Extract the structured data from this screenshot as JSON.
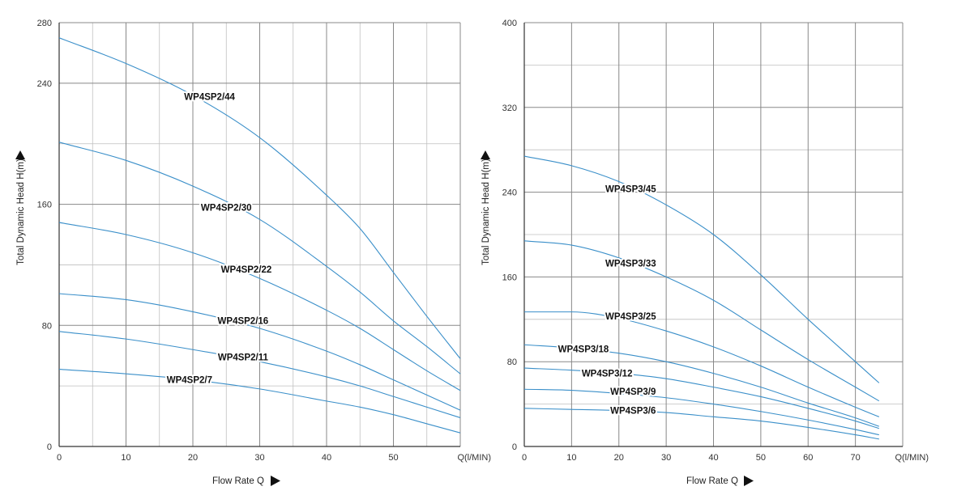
{
  "chart_data": [
    {
      "type": "line",
      "title": "",
      "xlabel": "Flow Rate Q",
      "ylabel": "Total Dynamic Head H(m)",
      "x_unit_label": "Q(l/MIN)",
      "xlim": [
        0,
        60
      ],
      "ylim": [
        0,
        280
      ],
      "x_ticks": [
        0,
        10,
        20,
        30,
        40,
        50
      ],
      "x_tick_labels": [
        "0",
        "10",
        "20",
        "30",
        "40",
        "50"
      ],
      "y_ticks": [
        0,
        80,
        160,
        240,
        280
      ],
      "y_tick_labels": [
        "0",
        "80",
        "160",
        "240",
        "280"
      ],
      "grid": true,
      "series": [
        {
          "name": "WP4SP2/44",
          "label_at": [
            22.5,
            231
          ],
          "x": [
            0,
            10,
            20,
            30,
            40,
            45,
            50,
            55,
            60
          ],
          "values": [
            270,
            253,
            232,
            204,
            166,
            144,
            115,
            86,
            58
          ]
        },
        {
          "name": "WP4SP2/30",
          "label_at": [
            25,
            158
          ],
          "x": [
            0,
            10,
            20,
            30,
            40,
            45,
            50,
            55,
            60
          ],
          "values": [
            201,
            189,
            172,
            150,
            119,
            102,
            83,
            66,
            48
          ]
        },
        {
          "name": "WP4SP2/22",
          "label_at": [
            28,
            117
          ],
          "x": [
            0,
            10,
            20,
            30,
            40,
            45,
            50,
            55,
            60
          ],
          "values": [
            148,
            140,
            128,
            111,
            90,
            78,
            64,
            50,
            37
          ]
        },
        {
          "name": "WP4SP2/16",
          "label_at": [
            27.5,
            83
          ],
          "x": [
            0,
            10,
            20,
            30,
            40,
            45,
            50,
            55,
            60
          ],
          "values": [
            101,
            97,
            89,
            78,
            63,
            54,
            44,
            34,
            24
          ]
        },
        {
          "name": "WP4SP2/11",
          "label_at": [
            27.5,
            59
          ],
          "x": [
            0,
            10,
            20,
            30,
            40,
            45,
            50,
            55,
            60
          ],
          "values": [
            76,
            71,
            64,
            56,
            46,
            40,
            33,
            26,
            19
          ]
        },
        {
          "name": "WP4SP2/7",
          "label_at": [
            19.5,
            44
          ],
          "x": [
            0,
            10,
            20,
            30,
            40,
            45,
            50,
            55,
            60
          ],
          "values": [
            51,
            48,
            44,
            38,
            30,
            26,
            21,
            15,
            9
          ]
        }
      ]
    },
    {
      "type": "line",
      "title": "",
      "xlabel": "Flow Rate Q",
      "ylabel": "Total Dynamic Head H(m)",
      "x_unit_label": "Q(l/MIN)",
      "xlim": [
        0,
        80
      ],
      "ylim": [
        0,
        400
      ],
      "x_ticks": [
        0,
        10,
        20,
        30,
        40,
        50,
        60,
        70
      ],
      "x_tick_labels": [
        "0",
        "10",
        "20",
        "30",
        "40",
        "50",
        "60",
        "70"
      ],
      "y_ticks": [
        0,
        80,
        160,
        240,
        320,
        400
      ],
      "y_tick_labels": [
        "0",
        "80",
        "160",
        "240",
        "320",
        "400"
      ],
      "grid": true,
      "series": [
        {
          "name": "WP4SP3/45",
          "label_at": [
            22.5,
            243
          ],
          "x": [
            0,
            10,
            20,
            30,
            40,
            50,
            60,
            70,
            75
          ],
          "values": [
            274,
            265,
            250,
            228,
            200,
            162,
            120,
            80,
            60
          ]
        },
        {
          "name": "WP4SP3/33",
          "label_at": [
            22.5,
            173
          ],
          "x": [
            0,
            10,
            20,
            30,
            40,
            50,
            60,
            70,
            75
          ],
          "values": [
            194,
            190,
            178,
            160,
            138,
            110,
            82,
            56,
            43
          ]
        },
        {
          "name": "WP4SP3/25",
          "label_at": [
            22.5,
            123
          ],
          "x": [
            0,
            10,
            20,
            30,
            40,
            50,
            60,
            70,
            75
          ],
          "values": [
            127,
            127,
            121,
            109,
            94,
            76,
            56,
            37,
            28
          ]
        },
        {
          "name": "WP4SP3/18",
          "label_at": [
            12.5,
            92
          ],
          "x": [
            0,
            10,
            20,
            30,
            40,
            50,
            60,
            70,
            75
          ],
          "values": [
            96,
            93,
            88,
            80,
            69,
            56,
            41,
            27,
            19
          ]
        },
        {
          "name": "WP4SP3/12",
          "label_at": [
            17.5,
            69
          ],
          "x": [
            0,
            10,
            20,
            30,
            40,
            50,
            60,
            70,
            75
          ],
          "values": [
            74,
            72,
            69,
            64,
            56,
            47,
            36,
            24,
            17
          ]
        },
        {
          "name": "WP4SP3/9",
          "label_at": [
            23,
            52
          ],
          "x": [
            0,
            10,
            20,
            30,
            40,
            50,
            60,
            70,
            75
          ],
          "values": [
            54,
            53,
            50,
            46,
            40,
            33,
            25,
            16,
            11
          ]
        },
        {
          "name": "WP4SP3/6",
          "label_at": [
            23,
            34
          ],
          "x": [
            0,
            10,
            20,
            30,
            40,
            50,
            60,
            70,
            75
          ],
          "values": [
            36,
            35,
            34,
            32,
            28,
            24,
            18,
            11,
            7
          ]
        }
      ]
    }
  ]
}
